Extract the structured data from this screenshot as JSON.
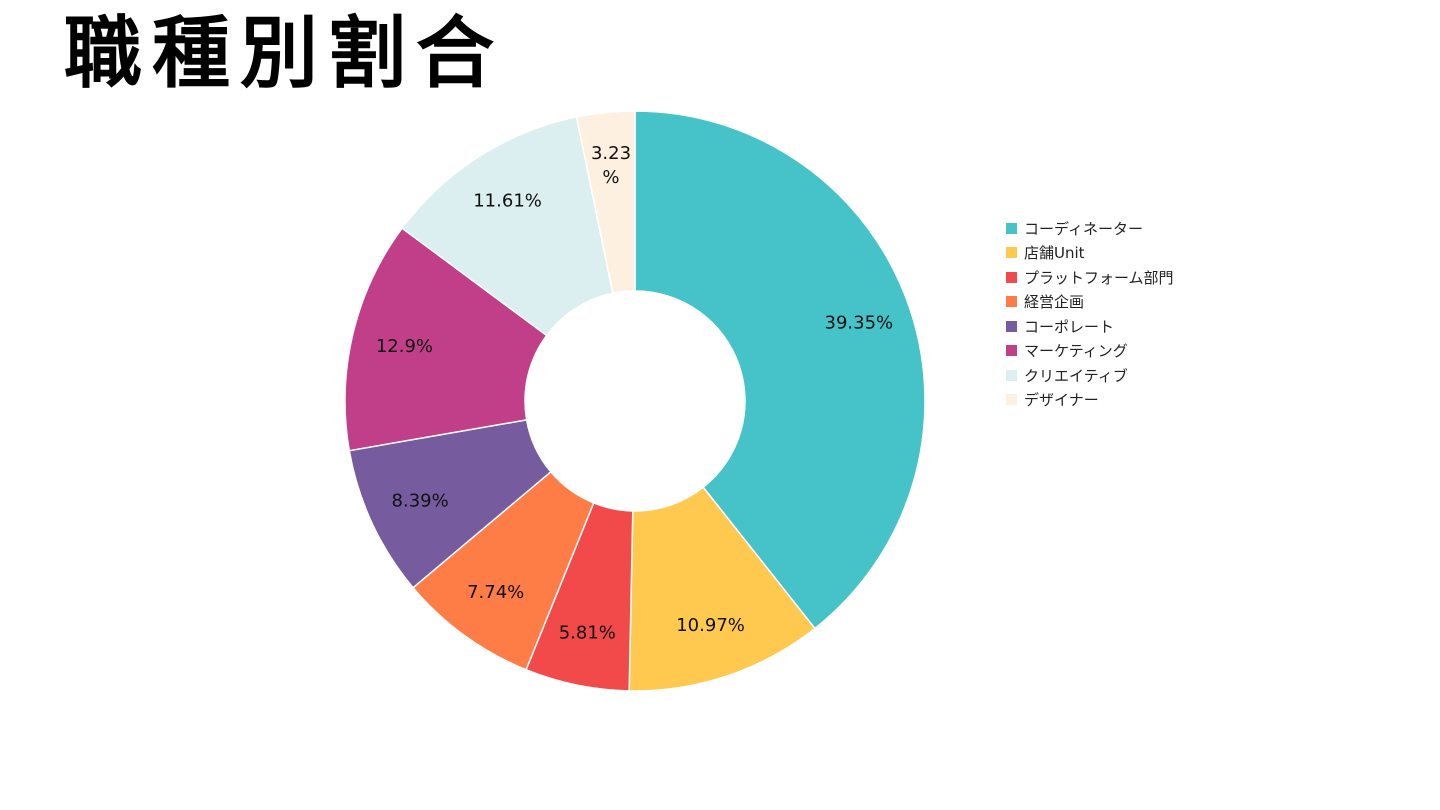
{
  "title": "職種別割合",
  "chart_data": {
    "type": "pie",
    "donut": true,
    "categories": [
      "コーディネーター",
      "店舗Unit",
      "プラットフォーム部門",
      "経営企画",
      "コーポレート",
      "マーケティング",
      "クリエイティブ",
      "デザイナー"
    ],
    "values": [
      39.35,
      10.97,
      5.81,
      7.74,
      8.39,
      12.9,
      11.61,
      3.23
    ],
    "labels": [
      "39.35%",
      "10.97%",
      "5.81%",
      "7.74%",
      "8.39%",
      "12.9%",
      "11.61%",
      "3.23%"
    ],
    "colors": [
      "#45c3c9",
      "#fec94e",
      "#f24a4b",
      "#fe7c45",
      "#765c9e",
      "#c13f88",
      "#dbeff0",
      "#fef0e0"
    ],
    "legend_position": "right",
    "unit": "%"
  }
}
